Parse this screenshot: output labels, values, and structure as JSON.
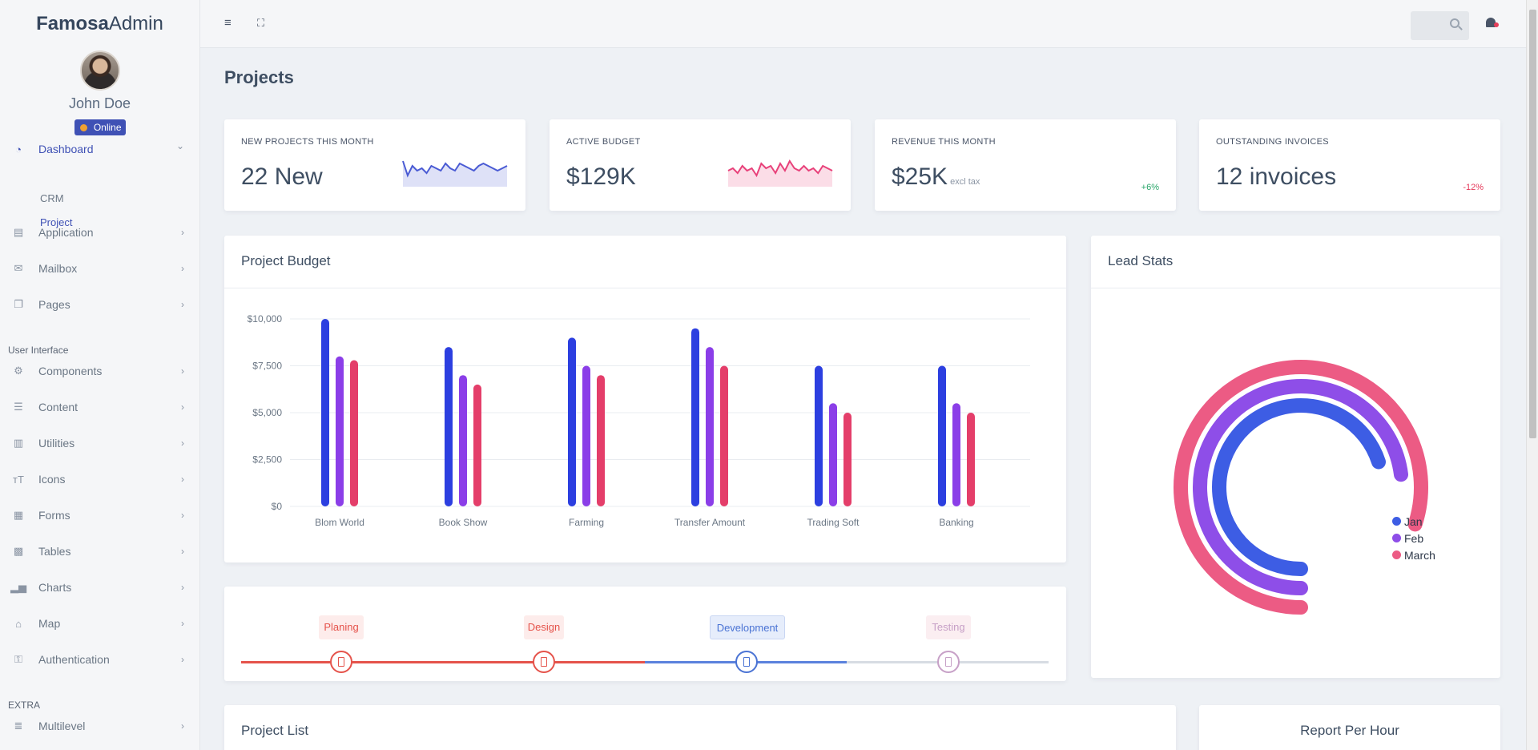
{
  "brand": {
    "bold": "Famosa",
    "light": "Admin"
  },
  "user": {
    "name": "John Doe",
    "status": "Online"
  },
  "sidebar": {
    "items": [
      {
        "label": "Dashboard",
        "icon": "dashboard-icon",
        "active": true,
        "top": 186
      },
      {
        "label": "Application",
        "icon": "application-icon",
        "top": 290
      },
      {
        "label": "Mailbox",
        "icon": "mail-icon",
        "top": 335
      },
      {
        "label": "Pages",
        "icon": "pages-icon",
        "top": 380
      },
      {
        "label": "Components",
        "icon": "components-icon",
        "top": 463
      },
      {
        "label": "Content",
        "icon": "content-icon",
        "top": 508
      },
      {
        "label": "Utilities",
        "icon": "utilities-icon",
        "top": 553
      },
      {
        "label": "Icons",
        "icon": "icons-icon",
        "top": 598
      },
      {
        "label": "Forms",
        "icon": "forms-icon",
        "top": 643
      },
      {
        "label": "Tables",
        "icon": "tables-icon",
        "top": 688
      },
      {
        "label": "Charts",
        "icon": "charts-icon",
        "top": 733
      },
      {
        "label": "Map",
        "icon": "map-icon",
        "top": 778
      },
      {
        "label": "Authentication",
        "icon": "authentication-icon",
        "top": 823
      },
      {
        "label": "Multilevel",
        "icon": "multilevel-icon",
        "top": 906
      }
    ],
    "subitems": [
      {
        "label": "CRM",
        "active": false
      },
      {
        "label": "Project",
        "active": true
      }
    ],
    "sections": [
      "User Interface",
      "EXTRA"
    ]
  },
  "page": {
    "title": "Projects"
  },
  "stats": [
    {
      "label": "NEW PROJECTS THIS MONTH",
      "value": "22 New",
      "sparkline": [
        9,
        3,
        7,
        5,
        6,
        4,
        7,
        6,
        5,
        8,
        6,
        5,
        8,
        7,
        6,
        5,
        7,
        8,
        7,
        6,
        5,
        6,
        7
      ],
      "color": "#4a5bd4"
    },
    {
      "label": "ACTIVE BUDGET",
      "value": "$129K",
      "sparkline": [
        5,
        6,
        4,
        7,
        5,
        6,
        3,
        8,
        6,
        7,
        4,
        8,
        5,
        9,
        6,
        5,
        7,
        5,
        6,
        4,
        7,
        6,
        5
      ],
      "color": "#e8417a"
    },
    {
      "label": "REVENUE THIS MONTH",
      "value": "$25K",
      "suffix": "excl tax",
      "delta": "+6%",
      "trend": "up"
    },
    {
      "label": "OUTSTANDING INVOICES",
      "value": "12 invoices",
      "delta": "-12%",
      "trend": "down"
    }
  ],
  "budget_card": {
    "title": "Project Budget"
  },
  "lead_card": {
    "title": "Lead Stats"
  },
  "project_list": {
    "title": "Project List"
  },
  "report_card": {
    "title": "Report Per Hour"
  },
  "stages": [
    {
      "label": "Planing",
      "color": "#e5534b",
      "bg": "#fdeceb"
    },
    {
      "label": "Design",
      "color": "#e5534b",
      "bg": "#fdeceb"
    },
    {
      "label": "Development",
      "color": "#4a73d4",
      "bg": "#e6edfb"
    },
    {
      "label": "Testing",
      "color": "#c7a0c7",
      "bg": "#fbeef1"
    }
  ],
  "chart_data": [
    {
      "type": "bar",
      "title": "Project Budget",
      "categories": [
        "Blom World",
        "Book Show",
        "Farming",
        "Transfer Amount",
        "Trading Soft",
        "Banking"
      ],
      "series": [
        {
          "values": [
            10000,
            8500,
            9000,
            9500,
            7500,
            7500
          ],
          "color": "#2c3fe0"
        },
        {
          "values": [
            8000,
            7000,
            7500,
            8500,
            5500,
            5500
          ],
          "color": "#8b3ee8"
        },
        {
          "values": [
            7800,
            6500,
            7000,
            7500,
            5000,
            5000
          ],
          "color": "#e43e6a"
        }
      ],
      "ylim": [
        0,
        10000
      ],
      "yticks": [
        "$0",
        "$2,500",
        "$5,000",
        "$7,500",
        "$10,000"
      ],
      "grid": true
    },
    {
      "type": "radialBar",
      "title": "Lead Stats",
      "series": [
        {
          "name": "Jan",
          "value": 70,
          "color": "#3d5de4"
        },
        {
          "name": "Feb",
          "value": 73,
          "color": "#8e4ee8"
        },
        {
          "name": "March",
          "value": 80,
          "color": "#ec5b84"
        }
      ],
      "legend": "right"
    }
  ]
}
